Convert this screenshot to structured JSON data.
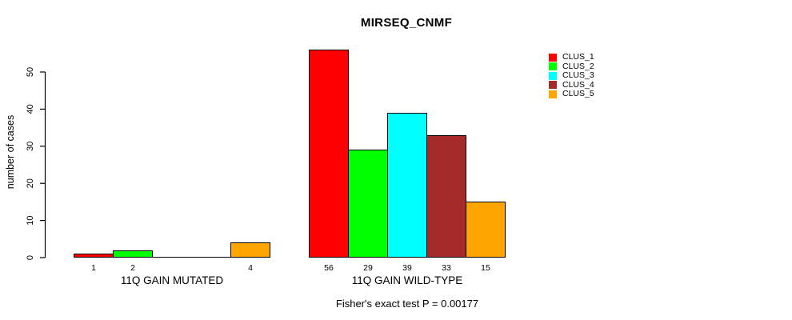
{
  "chart_data": {
    "type": "bar",
    "title": "MIRSEQ_CNMF",
    "ylabel": "number of cases",
    "xlabel": "",
    "ylim": [
      0,
      56
    ],
    "yticks": [
      0,
      10,
      20,
      30,
      40,
      50
    ],
    "grid": false,
    "legend_position": "top-right",
    "clusters": [
      {
        "name": "CLUS_1",
        "color": "#ff0000"
      },
      {
        "name": "CLUS_2",
        "color": "#00ff00"
      },
      {
        "name": "CLUS_3",
        "color": "#00ffff"
      },
      {
        "name": "CLUS_4",
        "color": "#a52a2a"
      },
      {
        "name": "CLUS_5",
        "color": "#ffa500"
      }
    ],
    "groups": [
      {
        "label": "11Q GAIN MUTATED",
        "values": [
          1,
          2,
          0,
          0,
          4
        ]
      },
      {
        "label": "11Q GAIN WILD-TYPE",
        "values": [
          56,
          29,
          39,
          33,
          15
        ]
      }
    ],
    "footnote": "Fisher's exact test P = 0.00177"
  }
}
